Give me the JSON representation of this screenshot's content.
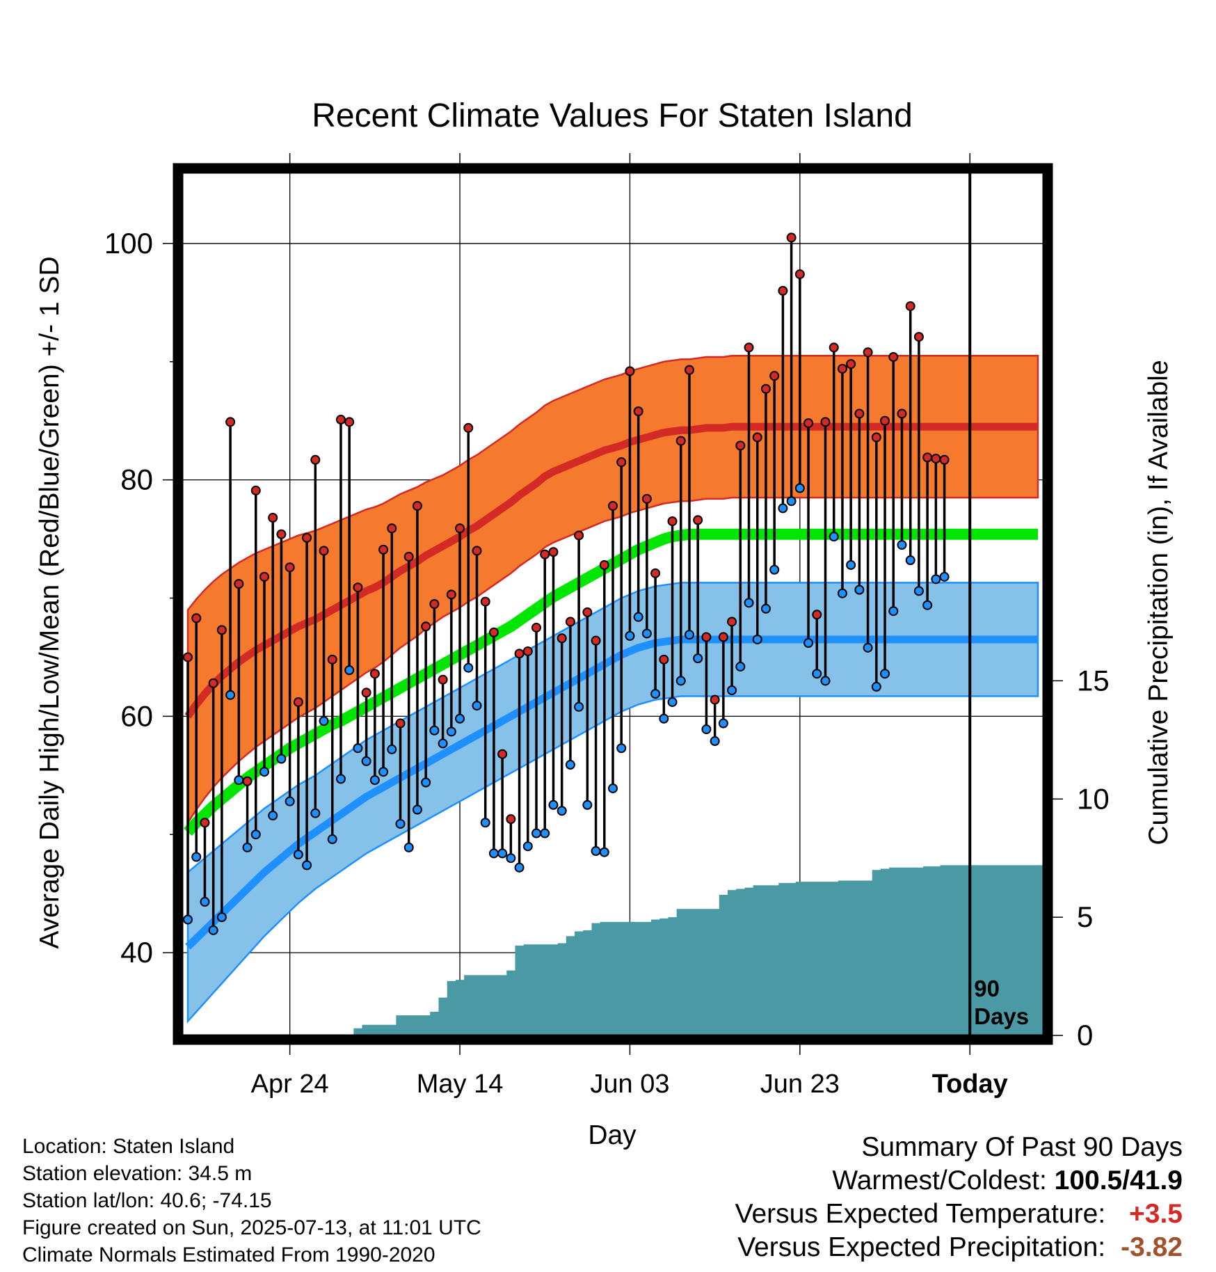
{
  "chart_data": {
    "type": "line",
    "title": "Recent Climate Values For Staten Island",
    "xlabel": "Day",
    "ylabel": "Average Daily High/Low/Mean (Red/Blue/Green) +/- 1 SD",
    "y2label": "Cumulative Precipitation (in), If Available",
    "x_tick_labels": [
      "Apr 24",
      "May 14",
      "Jun 03",
      "Jun 23",
      "Today"
    ],
    "x_ticks_day_index": [
      12,
      32,
      52,
      72,
      92
    ],
    "ylim": [
      33,
      106
    ],
    "yticks": [
      40,
      60,
      80,
      100
    ],
    "y2lim": [
      0,
      36.5
    ],
    "y2ticks": [
      0,
      5,
      10,
      15
    ],
    "grid": true,
    "today_marker": {
      "day_index": 92,
      "label_line1": "90",
      "label_line2": "Days"
    },
    "days": 101,
    "series": [
      {
        "name": "Average Daily High",
        "kind": "normal_band",
        "color": "#d42a26",
        "band_color": "#f57a2e",
        "mean": [
          60.0,
          61.0,
          61.9,
          62.7,
          63.4,
          64.0,
          64.6,
          65.1,
          65.6,
          66.0,
          66.4,
          66.8,
          67.2,
          67.6,
          67.9,
          68.2,
          68.6,
          69.0,
          69.4,
          69.8,
          70.2,
          70.6,
          70.9,
          71.3,
          71.8,
          72.3,
          72.7,
          73.1,
          73.6,
          74.0,
          74.4,
          74.8,
          75.2,
          75.7,
          76.1,
          76.6,
          77.1,
          77.6,
          78.1,
          78.7,
          79.2,
          79.7,
          80.3,
          80.7,
          81.0,
          81.3,
          81.6,
          81.9,
          82.2,
          82.5,
          82.7,
          82.9,
          83.2,
          83.4,
          83.6,
          83.8,
          84.0,
          84.1,
          84.2,
          84.2,
          84.3,
          84.4,
          84.4,
          84.4,
          84.5,
          84.5,
          84.5,
          84.5,
          84.5,
          84.5,
          84.5,
          84.5,
          84.5,
          84.5,
          84.5,
          84.5,
          84.5,
          84.5,
          84.5,
          84.5,
          84.5,
          84.5,
          84.5,
          84.5,
          84.5,
          84.5,
          84.5,
          84.5,
          84.5,
          84.5,
          84.5,
          84.5,
          84.5,
          84.5,
          84.5,
          84.5,
          84.5,
          84.5,
          84.5,
          84.5,
          84.5
        ],
        "sd": [
          9.0,
          8.9,
          8.8,
          8.7,
          8.6,
          8.5,
          8.4,
          8.3,
          8.2,
          8.1,
          8.0,
          7.9,
          7.8,
          7.7,
          7.6,
          7.5,
          7.4,
          7.3,
          7.2,
          7.1,
          7.0,
          6.9,
          6.8,
          6.7,
          6.6,
          6.5,
          6.4,
          6.3,
          6.2,
          6.1,
          6.0,
          6.0,
          6.0,
          6.0,
          6.0,
          6.0,
          6.0,
          6.0,
          6.0,
          6.0,
          6.0,
          6.0,
          6.0,
          6.0,
          6.0,
          6.0,
          6.0,
          6.0,
          6.0,
          6.0,
          6.0,
          6.0,
          6.0,
          6.0,
          6.0,
          6.0,
          6.0,
          6.0,
          6.0,
          6.0,
          6.0,
          6.0,
          6.0,
          6.0,
          6.0,
          6.0,
          6.0,
          6.0,
          6.0,
          6.0,
          6.0,
          6.0,
          6.0,
          6.0,
          6.0,
          6.0,
          6.0,
          6.0,
          6.0,
          6.0,
          6.0,
          6.0,
          6.0,
          6.0,
          6.0,
          6.0,
          6.0,
          6.0,
          6.0,
          6.0,
          6.0,
          6.0,
          6.0,
          6.0,
          6.0,
          6.0,
          6.0,
          6.0,
          6.0,
          6.0,
          6.0
        ]
      },
      {
        "name": "Average Daily Low",
        "kind": "normal_band",
        "color": "#1e90ff",
        "band_color": "#85c1e9",
        "mean": [
          40.5,
          41.2,
          41.9,
          42.6,
          43.3,
          44.0,
          44.7,
          45.4,
          46.1,
          46.8,
          47.4,
          48.0,
          48.6,
          49.2,
          49.7,
          50.2,
          50.7,
          51.2,
          51.7,
          52.2,
          52.7,
          53.2,
          53.6,
          54.0,
          54.4,
          54.8,
          55.2,
          55.6,
          56.0,
          56.4,
          56.8,
          57.2,
          57.6,
          58.0,
          58.4,
          58.8,
          59.2,
          59.6,
          60.0,
          60.4,
          60.8,
          61.2,
          61.6,
          62.0,
          62.4,
          62.8,
          63.2,
          63.6,
          64.0,
          64.4,
          64.8,
          65.2,
          65.5,
          65.8,
          66.0,
          66.2,
          66.3,
          66.4,
          66.5,
          66.5,
          66.5,
          66.5,
          66.5,
          66.5,
          66.5,
          66.5,
          66.5,
          66.5,
          66.5,
          66.5,
          66.5,
          66.5,
          66.5,
          66.5,
          66.5,
          66.5,
          66.5,
          66.5,
          66.5,
          66.5,
          66.5,
          66.5,
          66.5,
          66.5,
          66.5,
          66.5,
          66.5,
          66.5,
          66.5,
          66.5,
          66.5,
          66.5,
          66.5,
          66.5,
          66.5,
          66.5,
          66.5,
          66.5,
          66.5,
          66.5,
          66.5
        ],
        "sd": [
          6.3,
          6.2,
          6.1,
          6.0,
          5.9,
          5.8,
          5.7,
          5.6,
          5.5,
          5.4,
          5.3,
          5.2,
          5.1,
          5.0,
          4.9,
          4.8,
          4.8,
          4.8,
          4.8,
          4.8,
          4.8,
          4.8,
          4.8,
          4.8,
          4.8,
          4.8,
          4.8,
          4.8,
          4.8,
          4.8,
          4.8,
          4.8,
          4.8,
          4.8,
          4.8,
          4.8,
          4.8,
          4.8,
          4.8,
          4.8,
          4.8,
          4.8,
          4.8,
          4.8,
          4.8,
          4.8,
          4.8,
          4.8,
          4.8,
          4.8,
          4.8,
          4.8,
          4.8,
          4.8,
          4.8,
          4.8,
          4.8,
          4.8,
          4.8,
          4.8,
          4.8,
          4.8,
          4.8,
          4.8,
          4.8,
          4.8,
          4.8,
          4.8,
          4.8,
          4.8,
          4.8,
          4.8,
          4.8,
          4.8,
          4.8,
          4.8,
          4.8,
          4.8,
          4.8,
          4.8,
          4.8,
          4.8,
          4.8,
          4.8,
          4.8,
          4.8,
          4.8,
          4.8,
          4.8,
          4.8,
          4.8,
          4.8,
          4.8,
          4.8,
          4.8,
          4.8,
          4.8,
          4.8,
          4.8,
          4.8,
          4.8
        ]
      },
      {
        "name": "Average Daily Mean",
        "kind": "line",
        "color": "#00e600",
        "values": [
          50.2,
          51.0,
          51.7,
          52.4,
          53.0,
          53.6,
          54.2,
          54.8,
          55.3,
          55.8,
          56.3,
          56.8,
          57.3,
          57.7,
          58.1,
          58.5,
          58.9,
          59.3,
          59.6,
          60.0,
          60.4,
          60.8,
          61.2,
          61.6,
          62.0,
          62.4,
          62.8,
          63.2,
          63.6,
          64.0,
          64.4,
          64.8,
          65.2,
          65.6,
          66.0,
          66.4,
          66.8,
          67.2,
          67.6,
          68.1,
          68.6,
          69.1,
          69.6,
          70.1,
          70.5,
          70.9,
          71.3,
          71.7,
          72.1,
          72.5,
          72.9,
          73.3,
          73.7,
          74.1,
          74.4,
          74.7,
          75.0,
          75.2,
          75.3,
          75.4,
          75.4,
          75.4,
          75.4,
          75.4,
          75.4,
          75.4,
          75.4,
          75.4,
          75.4,
          75.4,
          75.4,
          75.4,
          75.4,
          75.4,
          75.4,
          75.4,
          75.4,
          75.4,
          75.4,
          75.4,
          75.4,
          75.4,
          75.4,
          75.4,
          75.4,
          75.4,
          75.4,
          75.4,
          75.4,
          75.4,
          75.4,
          75.4,
          75.4,
          75.4,
          75.4,
          75.4,
          75.4,
          75.4,
          75.4,
          75.4,
          75.4
        ]
      },
      {
        "name": "Observed High",
        "kind": "points",
        "color": "#d42a26",
        "values": [
          65.0,
          68.3,
          51.0,
          62.8,
          67.3,
          84.9,
          71.2,
          54.5,
          79.1,
          71.8,
          76.8,
          75.4,
          72.6,
          61.2,
          75.1,
          81.7,
          74.0,
          64.8,
          85.1,
          84.9,
          70.9,
          62.0,
          63.6,
          74.1,
          75.9,
          59.4,
          73.5,
          77.8,
          67.6,
          69.5,
          63.1,
          70.3,
          75.9,
          84.4,
          74.0,
          69.7,
          67.1,
          56.8,
          51.3,
          65.3,
          65.5,
          67.5,
          73.7,
          73.9,
          66.6,
          68.0,
          75.3,
          68.8,
          66.4,
          72.8,
          77.8,
          81.5,
          89.2,
          85.8,
          78.4,
          72.1,
          64.8,
          76.5,
          83.3,
          89.3,
          76.6,
          66.7,
          61.4,
          66.7,
          68.0,
          82.9,
          91.2,
          83.6,
          87.7,
          88.8,
          96.0,
          100.5,
          97.4,
          84.8,
          68.6,
          84.9,
          91.2,
          89.4,
          89.8,
          85.6,
          90.8,
          83.6,
          85.0,
          90.4,
          85.6,
          94.7,
          92.1,
          81.9,
          81.8,
          81.7
        ]
      },
      {
        "name": "Observed Low",
        "kind": "points",
        "color": "#1e90ff",
        "values": [
          42.8,
          48.1,
          44.3,
          41.9,
          43.0,
          61.8,
          54.6,
          48.9,
          50.0,
          55.3,
          51.6,
          56.4,
          52.8,
          48.3,
          47.4,
          51.8,
          59.6,
          49.6,
          54.7,
          63.9,
          57.3,
          56.2,
          54.6,
          55.3,
          57.2,
          50.9,
          48.9,
          52.1,
          54.4,
          58.8,
          57.7,
          58.7,
          59.8,
          64.1,
          60.9,
          51.0,
          48.4,
          48.4,
          48.0,
          47.2,
          49.0,
          50.1,
          50.1,
          52.5,
          52.0,
          55.9,
          60.8,
          52.5,
          48.6,
          48.5,
          53.9,
          57.3,
          66.8,
          68.4,
          67.0,
          61.9,
          59.8,
          61.2,
          63.0,
          66.9,
          64.9,
          58.9,
          57.9,
          59.4,
          62.2,
          64.2,
          69.6,
          66.5,
          69.1,
          72.4,
          77.6,
          78.2,
          79.3,
          66.2,
          63.6,
          63.0,
          75.2,
          70.4,
          72.8,
          70.7,
          65.8,
          62.5,
          63.6,
          68.9,
          74.5,
          73.2,
          70.6,
          69.4,
          71.6,
          71.8
        ]
      },
      {
        "name": "Cumulative Precipitation",
        "kind": "area",
        "axis": "y2",
        "color": "#4a9aa5",
        "values": [
          0,
          0,
          0,
          0,
          0,
          0,
          0,
          0,
          0,
          0,
          0,
          0,
          0,
          0,
          0,
          0,
          0,
          0,
          0,
          0,
          0.3,
          0.45,
          0.45,
          0.45,
          0.45,
          0.85,
          0.85,
          0.85,
          0.85,
          1.0,
          1.6,
          2.3,
          2.35,
          2.55,
          2.55,
          2.55,
          2.55,
          2.55,
          2.75,
          3.8,
          3.85,
          3.85,
          3.85,
          3.85,
          3.9,
          4.2,
          4.4,
          4.45,
          4.75,
          4.8,
          4.8,
          4.8,
          4.8,
          4.8,
          4.8,
          4.9,
          4.95,
          5.0,
          5.35,
          5.35,
          5.35,
          5.35,
          5.35,
          5.95,
          6.15,
          6.2,
          6.25,
          6.35,
          6.35,
          6.35,
          6.45,
          6.45,
          6.5,
          6.5,
          6.5,
          6.5,
          6.5,
          6.55,
          6.55,
          6.55,
          6.55,
          7.0,
          7.05,
          7.1,
          7.1,
          7.1,
          7.1,
          7.15,
          7.15,
          7.2,
          7.2,
          7.2,
          7.2,
          7.2,
          7.2,
          7.2,
          7.2,
          7.2,
          7.2,
          7.2,
          7.2,
          7.2,
          7.2
        ]
      }
    ]
  },
  "footer": {
    "location": "Location: Staten Island",
    "elevation": "Station elevation: 34.5 m",
    "latlon": "Station lat/lon: 40.6; -74.15",
    "created": "Figure created on Sun, 2025-07-13, at 11:01 UTC",
    "normals": "Climate Normals Estimated From 1990-2020"
  },
  "summary": {
    "title": "Summary Of Past 90 Days",
    "warm_cold_label": "Warmest/Coldest:",
    "warm_cold_value": "100.5/41.9",
    "temp_label": "Versus Expected Temperature:",
    "temp_value": "+3.5",
    "temp_color": "#d42a26",
    "precip_label": "Versus Expected Precipitation:",
    "precip_value": "-3.82",
    "precip_color": "#a0522d"
  }
}
